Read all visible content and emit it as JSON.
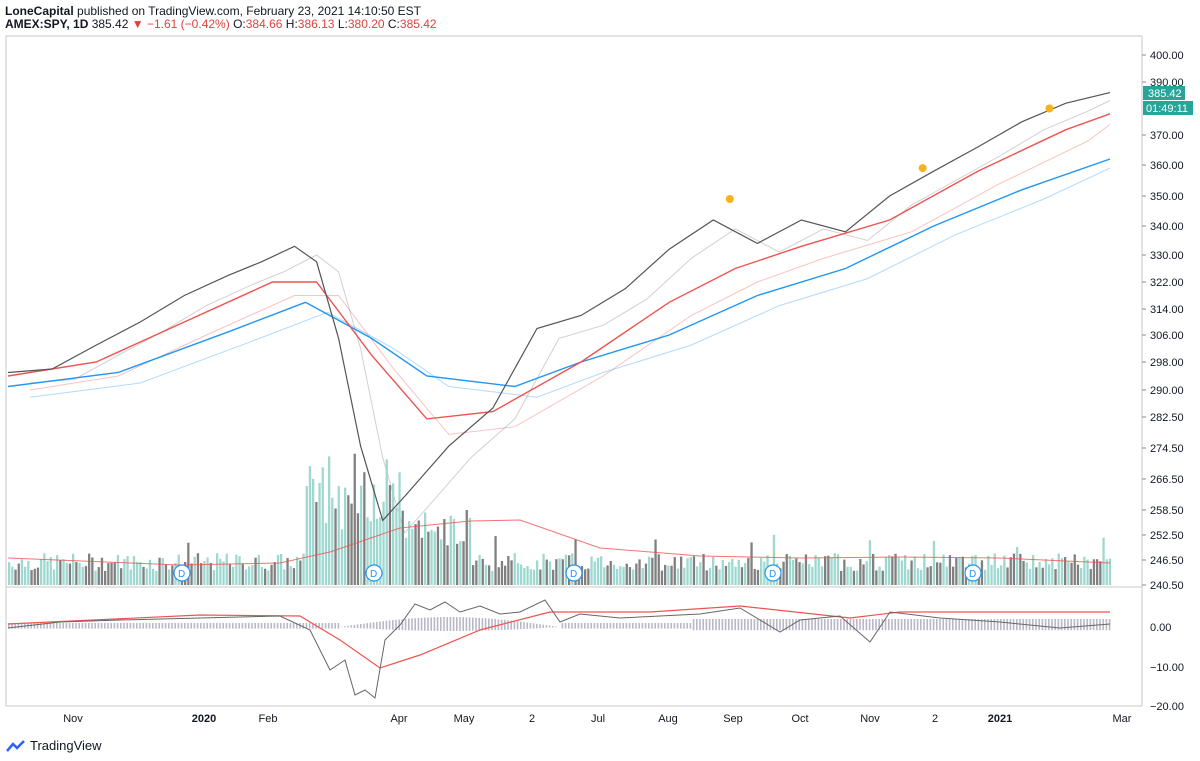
{
  "header": {
    "author": "LoneCapital",
    "published_text": "published on TradingView.com, February 23, 2021 14:10:50 EST",
    "symbol": "AMEX:SPY, 1D",
    "last": "385.42",
    "change": "−1.61 (−0.42%)",
    "o_label": "O:",
    "o_val": "384.66",
    "h_label": "H:",
    "h_val": "386.13",
    "l_label": "L:",
    "l_val": "380.20",
    "c_label": "C:",
    "c_val": "385.42"
  },
  "footer": {
    "brand": "TradingView"
  },
  "colors": {
    "red": "#ef5350",
    "blue": "#2196f3",
    "price": "#555555",
    "vol_up": "#9fd8d0",
    "vol_down": "#808080",
    "dot": "#f7b31b",
    "badge": "#26a69a",
    "accent_red": "#e0413f"
  },
  "chart_data": {
    "type": "line",
    "price_axis_labels": [
      "400.00",
      "390.00",
      "370.00",
      "360.00",
      "350.00",
      "340.00",
      "330.00",
      "322.00",
      "314.00",
      "306.00",
      "298.00",
      "290.00",
      "282.50",
      "274.50",
      "266.50",
      "258.50",
      "252.50",
      "246.50",
      "240.50"
    ],
    "price_badge": "385.42",
    "time_badge": "01:49:11",
    "x_labels": [
      "Nov",
      "2020",
      "Feb",
      "Apr",
      "May",
      "2",
      "Jul",
      "Aug",
      "Sep",
      "Oct",
      "Nov",
      "2",
      "2021",
      "Mar"
    ],
    "dividend_marker": "D",
    "macd_axis_labels": [
      "0.00",
      "−10.00",
      "−20.00"
    ],
    "price_series": [
      {
        "t": 0,
        "v": 295
      },
      {
        "t": 0.04,
        "v": 296
      },
      {
        "t": 0.08,
        "v": 303
      },
      {
        "t": 0.12,
        "v": 310
      },
      {
        "t": 0.16,
        "v": 318
      },
      {
        "t": 0.2,
        "v": 324
      },
      {
        "t": 0.23,
        "v": 328
      },
      {
        "t": 0.26,
        "v": 333
      },
      {
        "t": 0.28,
        "v": 328
      },
      {
        "t": 0.3,
        "v": 305
      },
      {
        "t": 0.32,
        "v": 275
      },
      {
        "t": 0.34,
        "v": 256
      },
      {
        "t": 0.36,
        "v": 262
      },
      {
        "t": 0.4,
        "v": 275
      },
      {
        "t": 0.44,
        "v": 285
      },
      {
        "t": 0.48,
        "v": 308
      },
      {
        "t": 0.52,
        "v": 312
      },
      {
        "t": 0.56,
        "v": 320
      },
      {
        "t": 0.6,
        "v": 332
      },
      {
        "t": 0.64,
        "v": 342
      },
      {
        "t": 0.68,
        "v": 334
      },
      {
        "t": 0.72,
        "v": 342
      },
      {
        "t": 0.76,
        "v": 338
      },
      {
        "t": 0.8,
        "v": 350
      },
      {
        "t": 0.84,
        "v": 358
      },
      {
        "t": 0.88,
        "v": 366
      },
      {
        "t": 0.92,
        "v": 375
      },
      {
        "t": 0.96,
        "v": 382
      },
      {
        "t": 1.0,
        "v": 386
      }
    ],
    "sma_red": [
      {
        "t": 0,
        "v": 294
      },
      {
        "t": 0.08,
        "v": 298
      },
      {
        "t": 0.16,
        "v": 310
      },
      {
        "t": 0.24,
        "v": 322
      },
      {
        "t": 0.28,
        "v": 322
      },
      {
        "t": 0.33,
        "v": 300
      },
      {
        "t": 0.38,
        "v": 282
      },
      {
        "t": 0.44,
        "v": 284
      },
      {
        "t": 0.52,
        "v": 298
      },
      {
        "t": 0.6,
        "v": 316
      },
      {
        "t": 0.66,
        "v": 326
      },
      {
        "t": 0.72,
        "v": 333
      },
      {
        "t": 0.8,
        "v": 342
      },
      {
        "t": 0.88,
        "v": 358
      },
      {
        "t": 0.96,
        "v": 372
      },
      {
        "t": 1.0,
        "v": 378
      }
    ],
    "sma_blue": [
      {
        "t": 0,
        "v": 291
      },
      {
        "t": 0.1,
        "v": 295
      },
      {
        "t": 0.2,
        "v": 307
      },
      {
        "t": 0.27,
        "v": 316
      },
      {
        "t": 0.33,
        "v": 305
      },
      {
        "t": 0.38,
        "v": 294
      },
      {
        "t": 0.46,
        "v": 291
      },
      {
        "t": 0.52,
        "v": 298
      },
      {
        "t": 0.6,
        "v": 306
      },
      {
        "t": 0.68,
        "v": 318
      },
      {
        "t": 0.76,
        "v": 326
      },
      {
        "t": 0.84,
        "v": 340
      },
      {
        "t": 0.92,
        "v": 352
      },
      {
        "t": 1.0,
        "v": 362
      }
    ],
    "signal_dots": [
      {
        "t": 0.655,
        "v": 349
      },
      {
        "t": 0.83,
        "v": 359
      },
      {
        "t": 0.945,
        "v": 380
      }
    ],
    "volume": "bars (gray = down, teal = up)",
    "macd": "line, signal, histogram"
  }
}
